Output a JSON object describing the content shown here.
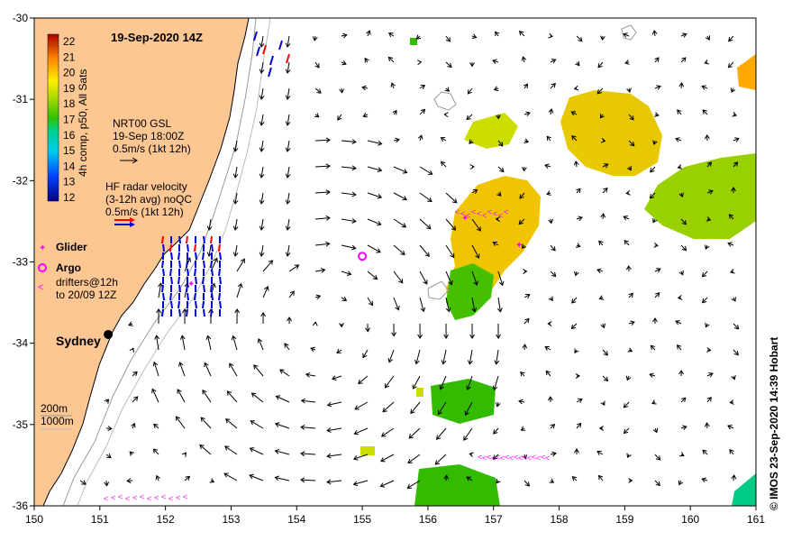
{
  "title": "19-Sep-2020 14Z",
  "credit": "© IMOS 23-Sep-2020 14:39 Hobart",
  "colorbar": {
    "label": "4h comp, p50, All Sats",
    "ticks": [
      "22",
      "21",
      "20",
      "19",
      "18",
      "17",
      "16",
      "15",
      "14",
      "13",
      "12"
    ]
  },
  "legend": {
    "gsl_line1": "NRT00 GSL",
    "gsl_line2": "19-Sep 18:00Z",
    "gsl_line3": "0.5m/s (1kt 12h)",
    "hf_line1": "HF radar velocity",
    "hf_line2": "(3-12h avg) noQC",
    "hf_line3": "0.5m/s (1kt 12h)",
    "glider": "Glider",
    "argo": "Argo",
    "drifters_line1": "drifters@12h",
    "drifters_line2": "to 20/09 12Z",
    "contour_200": "200m",
    "contour_1000": "1000m"
  },
  "place": {
    "sydney": "Sydney"
  },
  "axes": {
    "x_ticks": [
      "150",
      "151",
      "152",
      "153",
      "154",
      "155",
      "156",
      "157",
      "158",
      "159",
      "160",
      "161"
    ],
    "y_ticks": [
      "-30",
      "-31",
      "-32",
      "-33",
      "-34",
      "-35",
      "-36"
    ],
    "lon_range": [
      150,
      161
    ],
    "lat_range": [
      -36,
      -30
    ]
  },
  "colors": {
    "land": "#fdc794",
    "sst_green": "#33bb00",
    "sst_yellow": "#ccdd00",
    "sst_orange": "#ffaa00",
    "hf_blue": "#0000dd",
    "hf_red": "#ff0000",
    "magenta": "#ff00ff",
    "arrow": "#000000"
  },
  "markers": {
    "argo": [
      155.0,
      -32.93
    ],
    "sydney": [
      151.21,
      -33.87
    ]
  }
}
